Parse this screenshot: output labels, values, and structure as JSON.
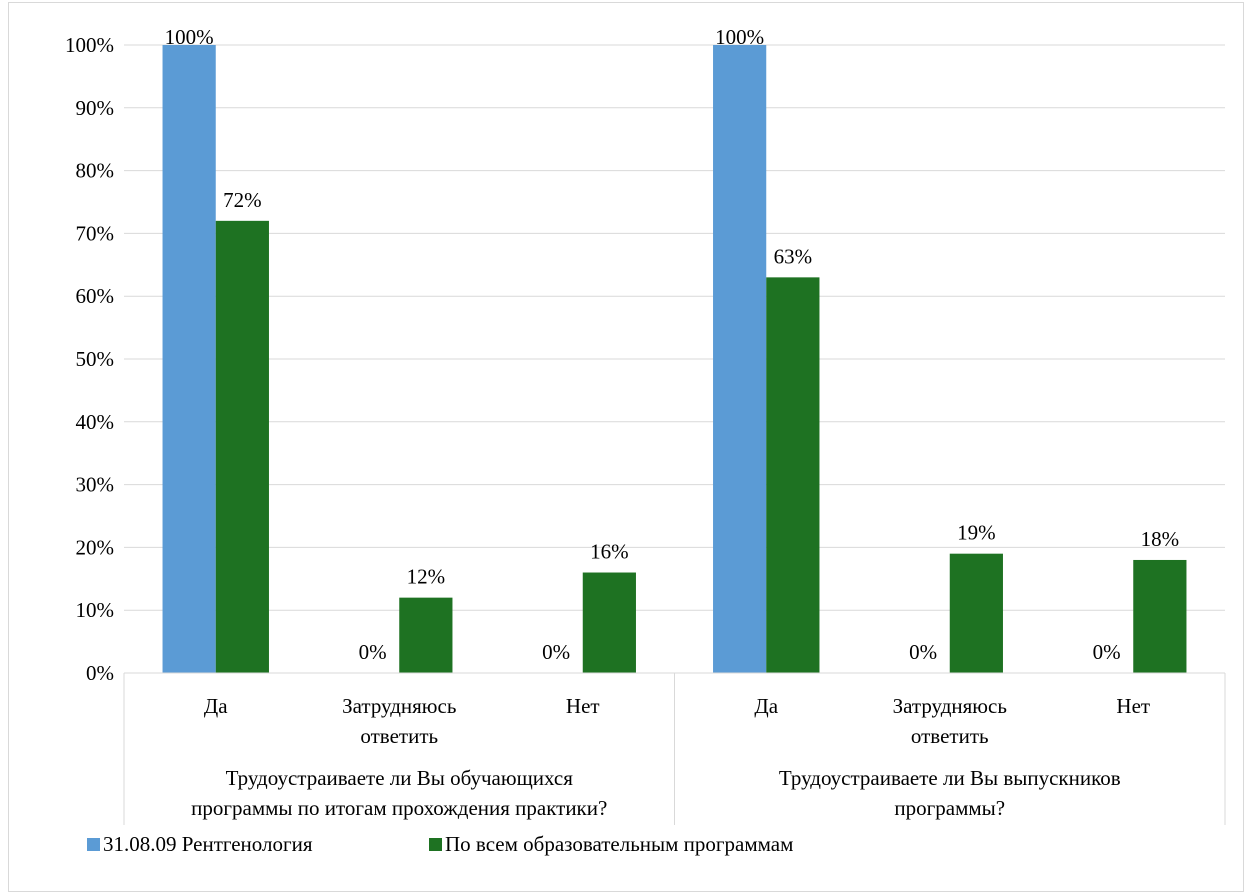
{
  "chart_data": {
    "type": "bar",
    "title": "",
    "xlabel": "",
    "ylabel": "",
    "ylim": [
      0,
      100
    ],
    "y_ticks": [
      "0%",
      "10%",
      "20%",
      "30%",
      "40%",
      "50%",
      "60%",
      "70%",
      "80%",
      "90%",
      "100%"
    ],
    "grid": true,
    "legend_position": "bottom-left",
    "groups": [
      {
        "label": [
          "Трудоустраиваете ли Вы обучающихся",
          "программы по итогам прохождения практики?"
        ],
        "categories": [
          [
            "Да"
          ],
          [
            "Затрудняюсь",
            "ответить"
          ],
          [
            "Нет"
          ]
        ]
      },
      {
        "label": [
          "Трудоустраиваете ли Вы выпускников",
          "программы?"
        ],
        "categories": [
          [
            "Да"
          ],
          [
            "Затрудняюсь",
            "ответить"
          ],
          [
            "Нет"
          ]
        ]
      }
    ],
    "series": [
      {
        "name": "31.08.09 Рентгенология",
        "color": "#5b9bd5",
        "values": [
          100,
          0,
          0,
          100,
          0,
          0
        ],
        "labels": [
          "100%",
          "0%",
          "0%",
          "100%",
          "0%",
          "0%"
        ]
      },
      {
        "name": "По всем образовательным программам",
        "color": "#1e7222",
        "values": [
          72,
          12,
          16,
          63,
          19,
          18
        ],
        "labels": [
          "72%",
          "12%",
          "16%",
          "63%",
          "19%",
          "18%"
        ]
      }
    ]
  }
}
